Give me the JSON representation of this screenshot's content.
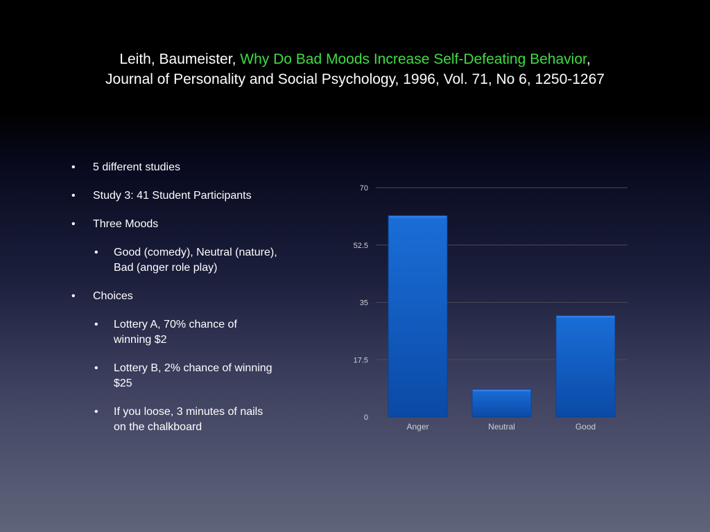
{
  "title": {
    "authors": "Leith, Baumeister, ",
    "paper": "Why Do Bad Moods Increase Self-Defeating Behavior",
    "comma": ",",
    "journal": "Journal of Personality and Social Psychology, 1996, Vol. 71, No 6, 1250-1267"
  },
  "bullets": [
    {
      "text": "5 different studies",
      "level": 1
    },
    {
      "text": "Study 3: 41 Student Participants",
      "level": 1
    },
    {
      "text": "Three Moods",
      "level": 1
    },
    {
      "text": "Good (comedy), Neutral (nature), Bad (anger role play)",
      "level": 2
    },
    {
      "text": "Choices",
      "level": 1
    },
    {
      "text": "Lottery A, 70% chance of winning $2",
      "level": 2
    },
    {
      "text": "Lottery B, 2% chance of winning $25",
      "level": 2
    },
    {
      "text": "If you loose, 3 minutes of nails on the chalkboard",
      "level": 2
    }
  ],
  "colors": {
    "background_top": "#000000",
    "background_bottom": "#60647a",
    "title_highlight": "#3fdc45",
    "bar_top": "#1a6ed8",
    "bar_bottom": "#0b4aa6",
    "gridline": "#4a4a58",
    "axis_text": "#d0d0d8"
  },
  "chart_data": {
    "type": "bar",
    "categories": [
      "Anger",
      "Neutral",
      "Good"
    ],
    "values": [
      61.5,
      8.5,
      31
    ],
    "ylim": [
      0,
      70
    ],
    "yticks": [
      0,
      17.5,
      35,
      52.5,
      70
    ],
    "ytick_labels": [
      "0",
      "17.5",
      "35",
      "52.5",
      "70"
    ],
    "grid": true,
    "legend": "none",
    "title": "",
    "xlabel": "",
    "ylabel": ""
  }
}
